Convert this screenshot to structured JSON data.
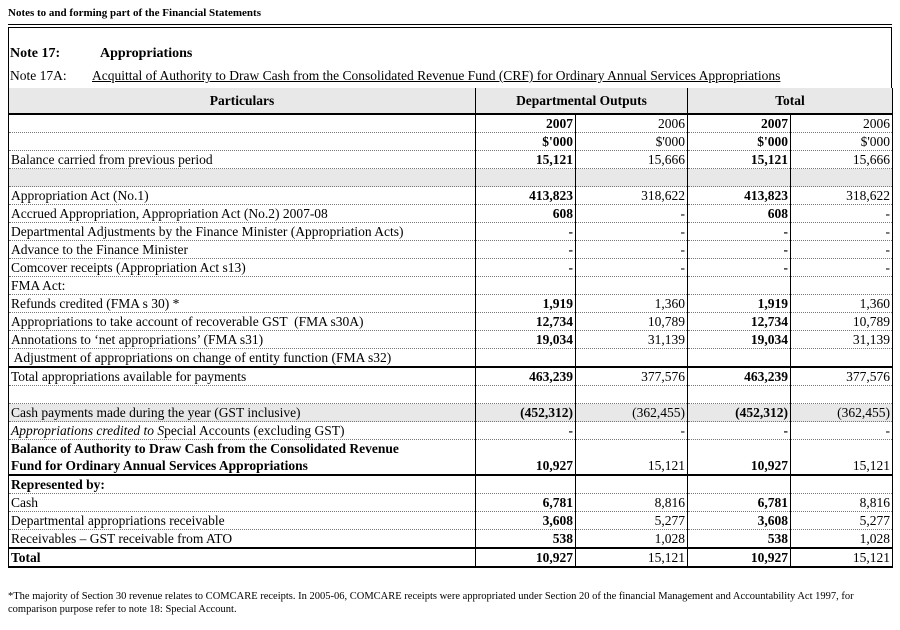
{
  "page_header": "Notes to and forming part of the Financial Statements",
  "note": {
    "number": "Note 17:",
    "title": "Appropriations"
  },
  "subnote": {
    "number": "Note 17A:",
    "title": "Acquittal of Authority to Draw Cash from the Consolidated Revenue Fund (CRF) for Ordinary Annual Services Appropriations"
  },
  "table": {
    "headers": [
      "Particulars",
      "Departmental Outputs",
      "Total"
    ],
    "years": [
      "2007",
      "2006",
      "2007",
      "2006"
    ],
    "units": [
      "$'000",
      "$'000",
      "$'000",
      "$'000"
    ],
    "rows": [
      {
        "label": "Balance carried from previous period",
        "values": [
          "15,121",
          "15,666",
          "15,121",
          "15,666"
        ]
      },
      {
        "label": "",
        "values": [
          "",
          "",
          "",
          ""
        ],
        "style": "grey"
      },
      {
        "label": "Appropriation Act (No.1)",
        "values": [
          "413,823",
          "318,622",
          "413,823",
          "318,622"
        ]
      },
      {
        "label": "Accrued Appropriation, Appropriation Act (No.2) 2007-08",
        "values": [
          "608",
          "-",
          "608",
          "-"
        ]
      },
      {
        "label": "Departmental Adjustments by the Finance Minister (Appropriation Acts)",
        "values": [
          "-",
          "-",
          "-",
          "-"
        ]
      },
      {
        "label": "Advance to the Finance Minister",
        "values": [
          "-",
          "-",
          "-",
          "-"
        ]
      },
      {
        "label": "Comcover receipts (Appropriation Act s13)",
        "values": [
          "-",
          "-",
          "-",
          "-"
        ]
      },
      {
        "label": "FMA Act:",
        "values": [
          "",
          "",
          "",
          ""
        ]
      },
      {
        "label": "Refunds credited (FMA s 30) *",
        "values": [
          "1,919",
          "1,360",
          "1,919",
          "1,360"
        ]
      },
      {
        "label": "Appropriations to take account of recoverable GST  (FMA s30A)",
        "values": [
          "12,734",
          "10,789",
          "12,734",
          "10,789"
        ]
      },
      {
        "label": "Annotations to ‘net appropriations’ (FMA s31)",
        "values": [
          "19,034",
          "31,139",
          "19,034",
          "31,139"
        ]
      },
      {
        "label": " Adjustment of appropriations on change of entity function (FMA s32)",
        "values": [
          "",
          "",
          "",
          ""
        ]
      },
      {
        "label": "Total appropriations available for payments",
        "values": [
          "463,239",
          "377,576",
          "463,239",
          "377,576"
        ],
        "style": "thick"
      },
      {
        "label": "",
        "values": [
          "",
          "",
          "",
          ""
        ]
      },
      {
        "label": "Cash payments made during the year (GST inclusive)",
        "values": [
          "(452,312)",
          "(362,455)",
          "(452,312)",
          "(362,455)"
        ],
        "style": "grey"
      },
      {
        "label_italic": "Appropriations credited to S",
        "label": "pecial Accounts (excluding GST)",
        "values": [
          "-",
          "-",
          "-",
          "-"
        ]
      },
      {
        "label": "Balance of Authority to Draw Cash from the Consolidated Revenue",
        "label2": "Fund for Ordinary Annual Services Appropriations",
        "values": [
          "10,927",
          "15,121",
          "10,927",
          "15,121"
        ],
        "style": "tall",
        "bold_label": true
      },
      {
        "label": "Represented by:",
        "values": [
          "",
          "",
          "",
          ""
        ],
        "style": "thick",
        "bold_label": true
      },
      {
        "label": "Cash",
        "values": [
          "6,781",
          "8,816",
          "6,781",
          "8,816"
        ]
      },
      {
        "label": "Departmental appropriations receivable",
        "values": [
          "3,608",
          "5,277",
          "3,608",
          "5,277"
        ]
      },
      {
        "label": "Receivables – GST receivable from ATO",
        "values": [
          "538",
          "1,028",
          "538",
          "1,028"
        ]
      },
      {
        "label": "Total",
        "values": [
          "10,927",
          "15,121",
          "10,927",
          "15,121"
        ],
        "style": "last",
        "bold_label": true
      }
    ]
  },
  "footnote": "*The majority of Section 30 revenue relates to COMCARE receipts.  In 2005-06, COMCARE receipts were appropriated under Section 20 of the financial Management and Accountability Act 1997, for comparison purpose refer to note 18: Special Account."
}
